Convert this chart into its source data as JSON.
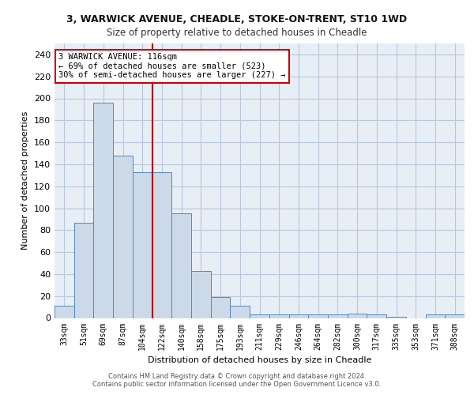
{
  "title_line1": "3, WARWICK AVENUE, CHEADLE, STOKE-ON-TRENT, ST10 1WD",
  "title_line2": "Size of property relative to detached houses in Cheadle",
  "xlabel": "Distribution of detached houses by size in Cheadle",
  "ylabel": "Number of detached properties",
  "categories": [
    "33sqm",
    "51sqm",
    "69sqm",
    "87sqm",
    "104sqm",
    "122sqm",
    "140sqm",
    "158sqm",
    "175sqm",
    "193sqm",
    "211sqm",
    "229sqm",
    "246sqm",
    "264sqm",
    "282sqm",
    "300sqm",
    "317sqm",
    "335sqm",
    "353sqm",
    "371sqm",
    "388sqm"
  ],
  "values": [
    11,
    87,
    196,
    148,
    133,
    133,
    95,
    43,
    19,
    11,
    3,
    3,
    3,
    3,
    3,
    4,
    3,
    1,
    0,
    3,
    3
  ],
  "bar_color": "#ccd9e8",
  "bar_edge_color": "#5588bb",
  "bar_edge_width": 0.7,
  "grid_color": "#b8c8dc",
  "background_color": "#e8eef6",
  "vline_color": "#aa0000",
  "annotation_text": "3 WARWICK AVENUE: 116sqm\n← 69% of detached houses are smaller (523)\n30% of semi-detached houses are larger (227) →",
  "annotation_box_color": "#ffffff",
  "annotation_box_edge": "#cc0000",
  "ylim": [
    0,
    250
  ],
  "yticks": [
    0,
    20,
    40,
    60,
    80,
    100,
    120,
    140,
    160,
    180,
    200,
    220,
    240
  ],
  "footer_line1": "Contains HM Land Registry data © Crown copyright and database right 2024.",
  "footer_line2": "Contains public sector information licensed under the Open Government Licence v3.0."
}
